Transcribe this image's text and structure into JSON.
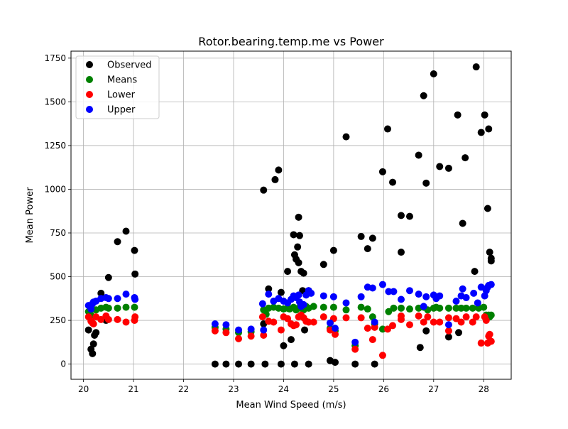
{
  "chart_data": {
    "type": "scatter",
    "title": "Rotor.bearing.temp.me vs Power",
    "xlabel": "Mean Wind Speed (m/s)",
    "ylabel": "Mean Power",
    "xlim": [
      19.75,
      28.55
    ],
    "ylim": [
      -87,
      1790
    ],
    "xticks": [
      20,
      21,
      22,
      23,
      24,
      25,
      26,
      27,
      28
    ],
    "yticks": [
      0,
      250,
      500,
      750,
      1000,
      1250,
      1500,
      1750
    ],
    "grid": true,
    "legend_position": "top-left",
    "series": [
      {
        "name": "Observed",
        "color": "#000000",
        "points": [
          [
            20.1,
            195
          ],
          [
            20.15,
            85
          ],
          [
            20.18,
            60
          ],
          [
            20.2,
            115
          ],
          [
            20.22,
            165
          ],
          [
            20.25,
            180
          ],
          [
            20.35,
            405
          ],
          [
            20.45,
            250
          ],
          [
            20.5,
            495
          ],
          [
            20.68,
            700
          ],
          [
            20.85,
            760
          ],
          [
            21.02,
            650
          ],
          [
            21.03,
            515
          ],
          [
            22.63,
            0
          ],
          [
            22.85,
            0
          ],
          [
            23.1,
            0
          ],
          [
            23.35,
            0
          ],
          [
            23.63,
            0
          ],
          [
            23.95,
            0
          ],
          [
            24.22,
            0
          ],
          [
            24.5,
            0
          ],
          [
            24.93,
            20
          ],
          [
            25.03,
            10
          ],
          [
            25.43,
            0
          ],
          [
            25.82,
            0
          ],
          [
            23.6,
            995
          ],
          [
            23.6,
            230
          ],
          [
            23.7,
            430
          ],
          [
            23.83,
            1055
          ],
          [
            23.9,
            1110
          ],
          [
            23.95,
            410
          ],
          [
            24.0,
            105
          ],
          [
            24.08,
            530
          ],
          [
            24.15,
            140
          ],
          [
            24.2,
            740
          ],
          [
            24.22,
            625
          ],
          [
            24.25,
            600
          ],
          [
            24.28,
            670
          ],
          [
            24.3,
            840
          ],
          [
            24.3,
            580
          ],
          [
            24.32,
            735
          ],
          [
            24.35,
            530
          ],
          [
            24.38,
            420
          ],
          [
            24.4,
            520
          ],
          [
            24.42,
            195
          ],
          [
            24.5,
            420
          ],
          [
            24.8,
            570
          ],
          [
            25.0,
            650
          ],
          [
            25.25,
            1300
          ],
          [
            25.55,
            730
          ],
          [
            25.68,
            660
          ],
          [
            25.78,
            720
          ],
          [
            25.98,
            1100
          ],
          [
            26.08,
            1345
          ],
          [
            26.18,
            1040
          ],
          [
            26.35,
            850
          ],
          [
            26.35,
            640
          ],
          [
            26.52,
            845
          ],
          [
            26.7,
            1195
          ],
          [
            26.73,
            95
          ],
          [
            26.8,
            1535
          ],
          [
            26.85,
            1035
          ],
          [
            26.85,
            190
          ],
          [
            27.0,
            1660
          ],
          [
            27.12,
            1130
          ],
          [
            27.3,
            1120
          ],
          [
            27.3,
            155
          ],
          [
            27.48,
            1425
          ],
          [
            27.5,
            180
          ],
          [
            27.58,
            805
          ],
          [
            27.63,
            1180
          ],
          [
            27.82,
            530
          ],
          [
            27.85,
            1700
          ],
          [
            27.95,
            1325
          ],
          [
            28.02,
            1425
          ],
          [
            28.08,
            890
          ],
          [
            28.1,
            1345
          ],
          [
            28.12,
            640
          ],
          [
            28.15,
            605
          ],
          [
            28.15,
            590
          ]
        ]
      },
      {
        "name": "Means",
        "color": "#008000",
        "points": [
          [
            20.1,
            300
          ],
          [
            20.15,
            280
          ],
          [
            20.25,
            310
          ],
          [
            20.35,
            320
          ],
          [
            20.45,
            325
          ],
          [
            20.5,
            320
          ],
          [
            20.68,
            320
          ],
          [
            20.85,
            325
          ],
          [
            21.02,
            325
          ],
          [
            22.63,
            210
          ],
          [
            22.85,
            200
          ],
          [
            23.1,
            180
          ],
          [
            23.35,
            185
          ],
          [
            23.6,
            310
          ],
          [
            23.65,
            285
          ],
          [
            23.7,
            320
          ],
          [
            23.8,
            325
          ],
          [
            23.9,
            320
          ],
          [
            24.0,
            315
          ],
          [
            24.08,
            320
          ],
          [
            24.12,
            315
          ],
          [
            24.2,
            325
          ],
          [
            24.25,
            310
          ],
          [
            24.3,
            320
          ],
          [
            24.35,
            320
          ],
          [
            24.4,
            310
          ],
          [
            24.45,
            330
          ],
          [
            24.5,
            320
          ],
          [
            24.6,
            330
          ],
          [
            24.8,
            325
          ],
          [
            24.93,
            205
          ],
          [
            25.0,
            325
          ],
          [
            25.03,
            190
          ],
          [
            25.25,
            310
          ],
          [
            25.43,
            105
          ],
          [
            25.55,
            325
          ],
          [
            25.68,
            315
          ],
          [
            25.78,
            270
          ],
          [
            25.82,
            230
          ],
          [
            25.98,
            200
          ],
          [
            26.1,
            300
          ],
          [
            26.2,
            320
          ],
          [
            26.35,
            320
          ],
          [
            26.52,
            315
          ],
          [
            26.7,
            320
          ],
          [
            26.8,
            325
          ],
          [
            26.88,
            310
          ],
          [
            27.0,
            320
          ],
          [
            27.05,
            325
          ],
          [
            27.12,
            320
          ],
          [
            27.3,
            320
          ],
          [
            27.45,
            320
          ],
          [
            27.55,
            320
          ],
          [
            27.65,
            320
          ],
          [
            27.78,
            320
          ],
          [
            27.9,
            320
          ],
          [
            28.0,
            325
          ],
          [
            28.05,
            280
          ],
          [
            28.1,
            280
          ],
          [
            28.12,
            270
          ],
          [
            28.15,
            280
          ]
        ]
      },
      {
        "name": "Lower",
        "color": "#ff0000",
        "points": [
          [
            20.1,
            270
          ],
          [
            20.15,
            245
          ],
          [
            20.18,
            235
          ],
          [
            20.2,
            230
          ],
          [
            20.25,
            270
          ],
          [
            20.35,
            255
          ],
          [
            20.45,
            275
          ],
          [
            20.5,
            255
          ],
          [
            20.68,
            255
          ],
          [
            20.85,
            240
          ],
          [
            21.02,
            250
          ],
          [
            21.03,
            270
          ],
          [
            22.63,
            190
          ],
          [
            22.85,
            180
          ],
          [
            23.1,
            145
          ],
          [
            23.35,
            160
          ],
          [
            23.58,
            270
          ],
          [
            23.6,
            165
          ],
          [
            23.7,
            245
          ],
          [
            23.8,
            240
          ],
          [
            23.95,
            195
          ],
          [
            24.0,
            270
          ],
          [
            24.08,
            260
          ],
          [
            24.15,
            230
          ],
          [
            24.2,
            220
          ],
          [
            24.25,
            225
          ],
          [
            24.3,
            270
          ],
          [
            24.35,
            280
          ],
          [
            24.4,
            265
          ],
          [
            24.45,
            245
          ],
          [
            24.5,
            240
          ],
          [
            24.6,
            240
          ],
          [
            24.8,
            270
          ],
          [
            24.93,
            195
          ],
          [
            25.0,
            260
          ],
          [
            25.03,
            170
          ],
          [
            25.25,
            265
          ],
          [
            25.43,
            85
          ],
          [
            25.55,
            265
          ],
          [
            25.68,
            205
          ],
          [
            25.78,
            140
          ],
          [
            25.82,
            210
          ],
          [
            25.98,
            50
          ],
          [
            26.08,
            200
          ],
          [
            26.18,
            220
          ],
          [
            26.35,
            275
          ],
          [
            26.35,
            255
          ],
          [
            26.52,
            225
          ],
          [
            26.7,
            275
          ],
          [
            26.8,
            240
          ],
          [
            26.88,
            270
          ],
          [
            27.0,
            240
          ],
          [
            27.12,
            240
          ],
          [
            27.3,
            265
          ],
          [
            27.3,
            190
          ],
          [
            27.45,
            260
          ],
          [
            27.55,
            240
          ],
          [
            27.65,
            270
          ],
          [
            27.78,
            240
          ],
          [
            27.85,
            270
          ],
          [
            27.95,
            120
          ],
          [
            28.02,
            270
          ],
          [
            28.05,
            250
          ],
          [
            28.08,
            120
          ],
          [
            28.1,
            160
          ],
          [
            28.12,
            170
          ],
          [
            28.15,
            130
          ]
        ]
      },
      {
        "name": "Upper",
        "color": "#0000ff",
        "points": [
          [
            20.1,
            335
          ],
          [
            20.15,
            315
          ],
          [
            20.18,
            345
          ],
          [
            20.2,
            355
          ],
          [
            20.25,
            360
          ],
          [
            20.35,
            375
          ],
          [
            20.45,
            380
          ],
          [
            20.5,
            375
          ],
          [
            20.68,
            375
          ],
          [
            20.85,
            400
          ],
          [
            21.02,
            380
          ],
          [
            21.03,
            370
          ],
          [
            22.63,
            230
          ],
          [
            22.85,
            225
          ],
          [
            23.1,
            195
          ],
          [
            23.35,
            200
          ],
          [
            23.58,
            345
          ],
          [
            23.6,
            195
          ],
          [
            23.7,
            400
          ],
          [
            23.8,
            360
          ],
          [
            23.9,
            375
          ],
          [
            24.0,
            360
          ],
          [
            24.08,
            350
          ],
          [
            24.15,
            370
          ],
          [
            24.2,
            390
          ],
          [
            24.25,
            380
          ],
          [
            24.3,
            395
          ],
          [
            24.32,
            355
          ],
          [
            24.35,
            330
          ],
          [
            24.4,
            340
          ],
          [
            24.45,
            395
          ],
          [
            24.5,
            420
          ],
          [
            24.55,
            405
          ],
          [
            24.8,
            390
          ],
          [
            24.93,
            235
          ],
          [
            25.0,
            385
          ],
          [
            25.03,
            205
          ],
          [
            25.25,
            350
          ],
          [
            25.43,
            125
          ],
          [
            25.55,
            385
          ],
          [
            25.68,
            440
          ],
          [
            25.78,
            435
          ],
          [
            25.82,
            240
          ],
          [
            25.98,
            455
          ],
          [
            26.1,
            415
          ],
          [
            26.2,
            415
          ],
          [
            26.35,
            370
          ],
          [
            26.52,
            420
          ],
          [
            26.7,
            400
          ],
          [
            26.8,
            330
          ],
          [
            26.85,
            385
          ],
          [
            27.0,
            395
          ],
          [
            27.05,
            375
          ],
          [
            27.12,
            390
          ],
          [
            27.3,
            225
          ],
          [
            27.45,
            360
          ],
          [
            27.55,
            390
          ],
          [
            27.58,
            430
          ],
          [
            27.65,
            380
          ],
          [
            27.8,
            405
          ],
          [
            27.88,
            350
          ],
          [
            27.95,
            440
          ],
          [
            28.02,
            390
          ],
          [
            28.05,
            420
          ],
          [
            28.08,
            440
          ],
          [
            28.1,
            450
          ],
          [
            28.15,
            455
          ]
        ]
      }
    ]
  }
}
